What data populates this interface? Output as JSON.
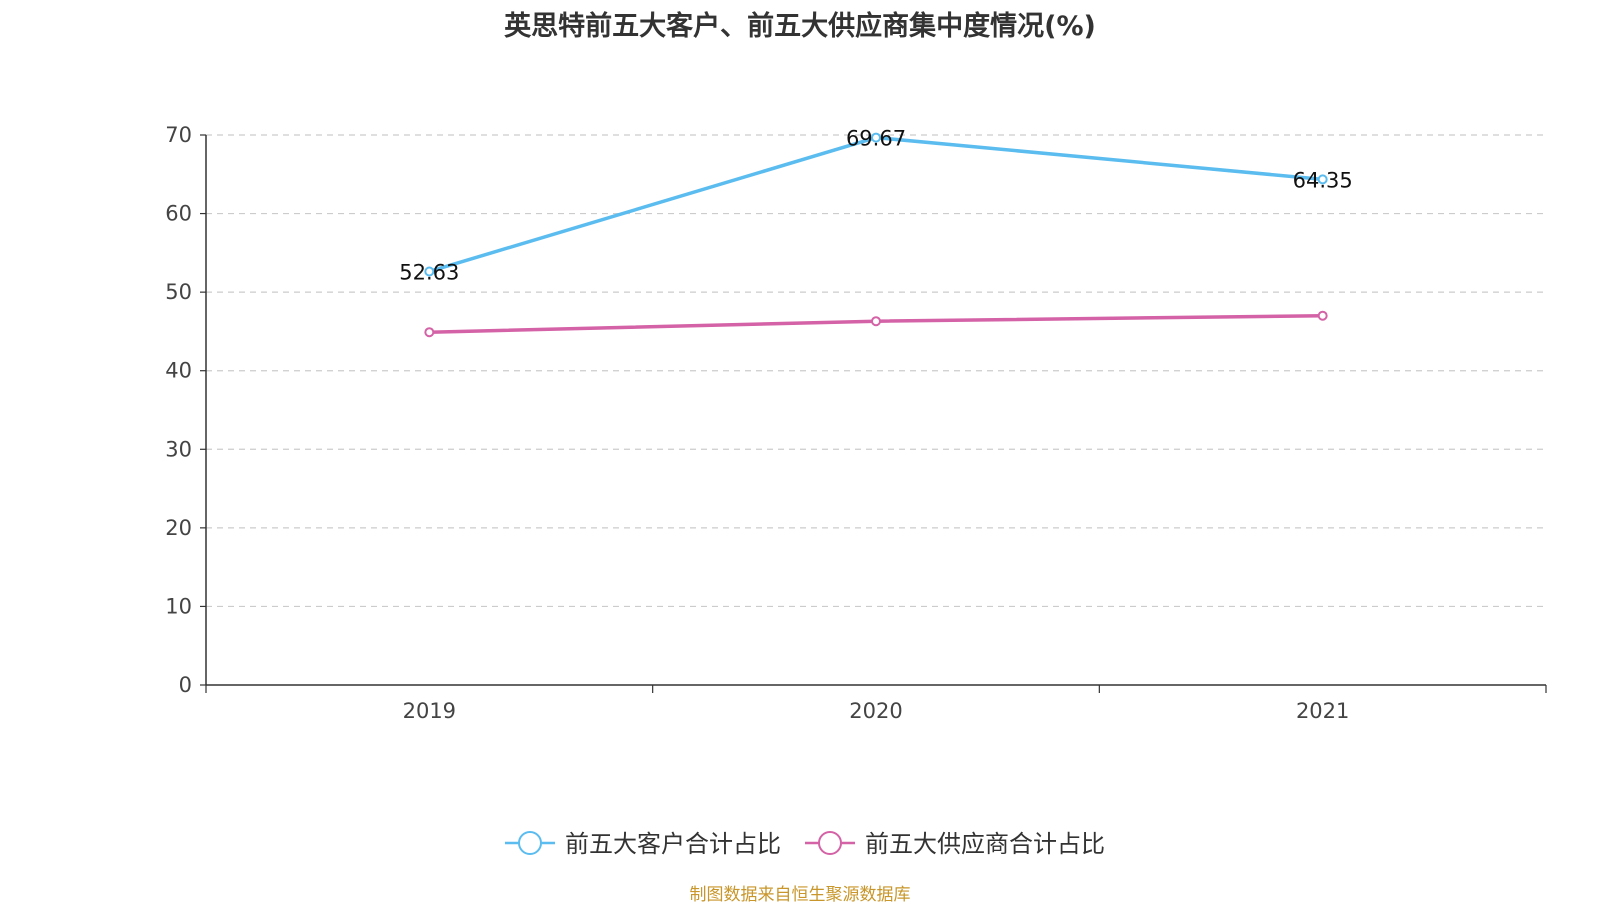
{
  "chart_data": {
    "type": "line",
    "title": "英思特前五大客户、前五大供应商集中度情况(%)",
    "categories": [
      "2019",
      "2020",
      "2021"
    ],
    "ylim": [
      0,
      70
    ],
    "yticks": [
      0,
      10,
      20,
      30,
      40,
      50,
      60,
      70
    ],
    "ytick_labels": [
      "0",
      "10",
      "20",
      "30",
      "40",
      "50",
      "60",
      "70"
    ],
    "grid": true,
    "legend_position": "bottom-center",
    "series": [
      {
        "name": "前五大客户合计占比",
        "color": "#5bbcf0",
        "values": [
          52.63,
          69.67,
          64.35
        ],
        "labels": [
          "52.63",
          "69.67",
          "64.35"
        ]
      },
      {
        "name": "前五大供应商合计占比",
        "color": "#d462a6",
        "values": [
          44.9,
          46.3,
          47.0
        ],
        "labels": null
      }
    ]
  },
  "source": "制图数据来自恒生聚源数据库"
}
